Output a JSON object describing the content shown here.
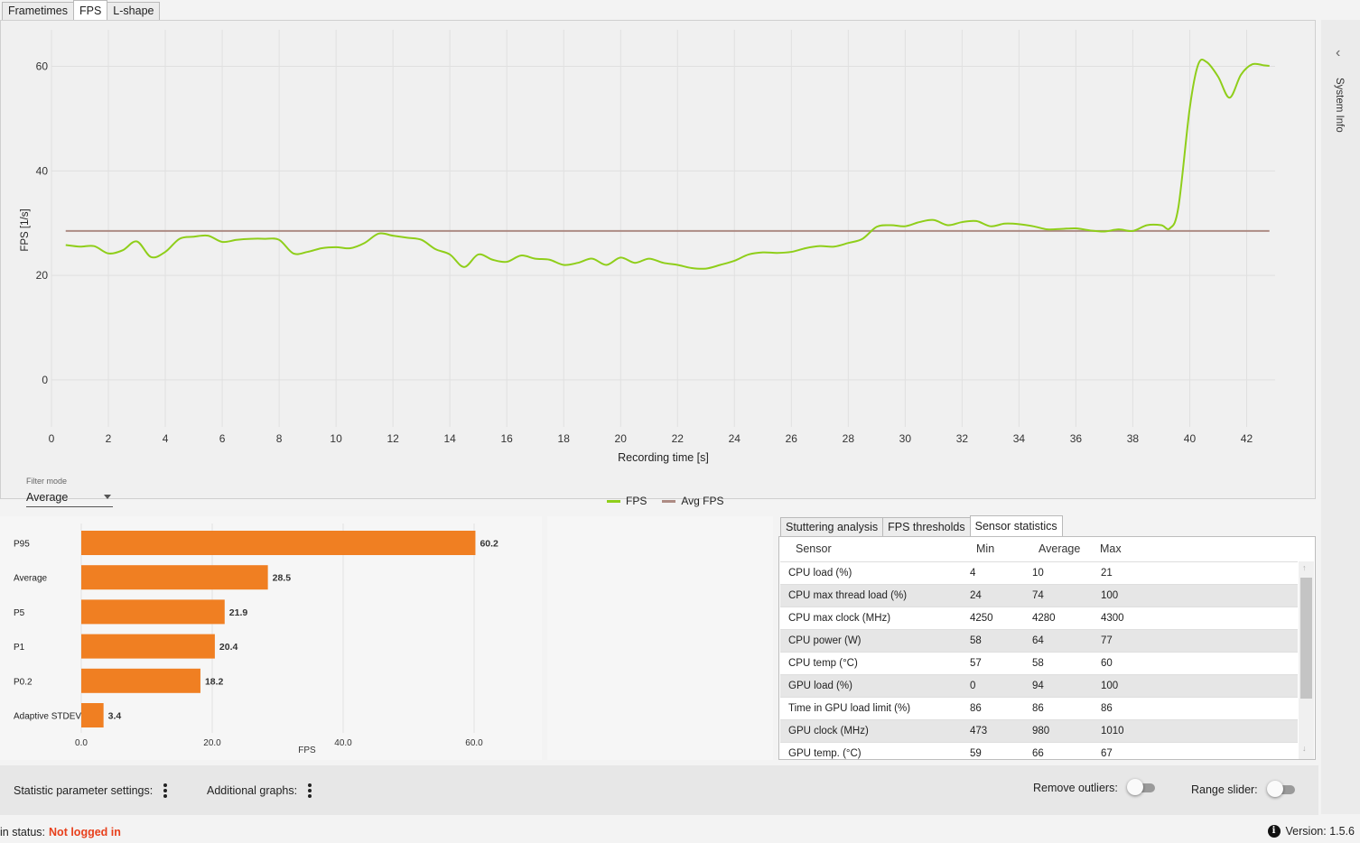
{
  "tabs": [
    "Frametimes",
    "FPS",
    "L-shape"
  ],
  "active_tab": "FPS",
  "chart_data": {
    "type": "line",
    "ylabel": "FPS [1/s]",
    "xlabel": "Recording time [s]",
    "xlim": [
      0,
      43
    ],
    "ylim": [
      -9,
      67
    ],
    "xticks": [
      0,
      2,
      4,
      6,
      8,
      10,
      12,
      14,
      16,
      18,
      20,
      22,
      24,
      26,
      28,
      30,
      32,
      34,
      36,
      38,
      40,
      42
    ],
    "yticks": [
      0,
      20,
      40,
      60
    ],
    "series": [
      {
        "name": "FPS",
        "color": "#8fce1a",
        "x": [
          0.5,
          1.0,
          1.5,
          2.0,
          2.5,
          3.0,
          3.5,
          4.0,
          4.5,
          5.0,
          5.5,
          6.0,
          6.5,
          7.0,
          7.5,
          8.0,
          8.5,
          9.0,
          9.5,
          10.0,
          10.5,
          11.0,
          11.5,
          12.0,
          12.5,
          13.0,
          13.5,
          14.0,
          14.5,
          15.0,
          15.5,
          16.0,
          16.5,
          17.0,
          17.5,
          18.0,
          18.5,
          19.0,
          19.5,
          20.0,
          20.5,
          21.0,
          21.5,
          22.0,
          22.5,
          23.0,
          23.5,
          24.0,
          24.5,
          25.0,
          25.5,
          26.0,
          26.5,
          27.0,
          27.5,
          28.0,
          28.5,
          29.0,
          29.5,
          30.0,
          30.5,
          31.0,
          31.5,
          32.0,
          32.5,
          33.0,
          33.5,
          34.0,
          34.5,
          35.0,
          35.5,
          36.0,
          36.5,
          37.0,
          37.5,
          38.0,
          38.5,
          39.0,
          39.3,
          39.6,
          40.0,
          40.3,
          40.6,
          41.0,
          41.4,
          41.8,
          42.2,
          42.6,
          42.8
        ],
        "values": [
          25.8,
          25.5,
          25.6,
          24.2,
          24.8,
          26.5,
          23.5,
          24.5,
          27.0,
          27.4,
          27.6,
          26.4,
          26.8,
          27.0,
          27.0,
          26.8,
          24.2,
          24.5,
          25.2,
          25.4,
          25.2,
          26.2,
          28.0,
          27.6,
          27.2,
          26.8,
          25.0,
          24.0,
          21.6,
          24.0,
          23.0,
          22.6,
          23.8,
          23.2,
          23.0,
          22.0,
          22.4,
          23.2,
          22.0,
          23.4,
          22.4,
          23.2,
          22.4,
          22.0,
          21.4,
          21.3,
          22.0,
          22.8,
          24.0,
          24.4,
          24.3,
          24.5,
          25.2,
          25.6,
          25.5,
          26.2,
          27.0,
          29.3,
          29.6,
          29.4,
          30.2,
          30.6,
          29.6,
          30.2,
          30.4,
          29.4,
          29.9,
          29.8,
          29.4,
          28.8,
          28.9,
          29.0,
          28.6,
          28.4,
          28.8,
          28.5,
          29.6,
          29.6,
          29.0,
          33.0,
          52.0,
          60.4,
          60.8,
          58.0,
          54.0,
          58.4,
          60.4,
          60.2,
          60.1
        ]
      },
      {
        "name": "Avg FPS",
        "color": "#ad8b84",
        "x": [
          0.5,
          42.8
        ],
        "values": [
          28.5,
          28.5
        ]
      }
    ]
  },
  "filter": {
    "label": "Filter mode",
    "value": "Average"
  },
  "legend": [
    {
      "name": "FPS",
      "color": "#8fce1a"
    },
    {
      "name": "Avg FPS",
      "color": "#ad8b84"
    }
  ],
  "side_panel": {
    "label": "System Info"
  },
  "bar_chart": {
    "type": "bar",
    "orientation": "horizontal",
    "categories": [
      "P95",
      "Average",
      "P5",
      "P1",
      "P0.2",
      "Adaptive STDEV"
    ],
    "values": [
      60.2,
      28.5,
      21.9,
      20.4,
      18.2,
      3.4
    ],
    "labels": [
      "60.2",
      "28.5",
      "21.9",
      "20.4",
      "18.2",
      "3.4"
    ],
    "xticks": [
      "0.0",
      "20.0",
      "40.0",
      "60.0"
    ],
    "xlim": [
      0,
      60
    ],
    "xlabel": "FPS",
    "color": "#f07f22"
  },
  "sensor_tabs": [
    "Stuttering analysis",
    "FPS thresholds",
    "Sensor statistics"
  ],
  "sensor_table": {
    "headers": [
      "Sensor",
      "Min",
      "Average",
      "Max"
    ],
    "rows": [
      [
        "CPU load (%)",
        "4",
        "10",
        "21"
      ],
      [
        "CPU max thread load (%)",
        "24",
        "74",
        "100"
      ],
      [
        "CPU max clock (MHz)",
        "4250",
        "4280",
        "4300"
      ],
      [
        "CPU power (W)",
        "58",
        "64",
        "77"
      ],
      [
        "CPU temp (°C)",
        "57",
        "58",
        "60"
      ],
      [
        "GPU load (%)",
        "0",
        "94",
        "100"
      ],
      [
        "Time in GPU load limit (%)",
        "86",
        "86",
        "86"
      ],
      [
        "GPU clock (MHz)",
        "473",
        "980",
        "1010"
      ],
      [
        "GPU temp. (°C)",
        "59",
        "66",
        "67"
      ]
    ]
  },
  "toolbar": {
    "stat_settings": "Statistic parameter settings:",
    "additional_graphs": "Additional graphs:",
    "remove_outliers": "Remove outliers:",
    "range_slider": "Range slider:"
  },
  "status": {
    "label": "in status:",
    "value": "Not logged in",
    "version_label": "Version:",
    "version": "1.5.6"
  }
}
